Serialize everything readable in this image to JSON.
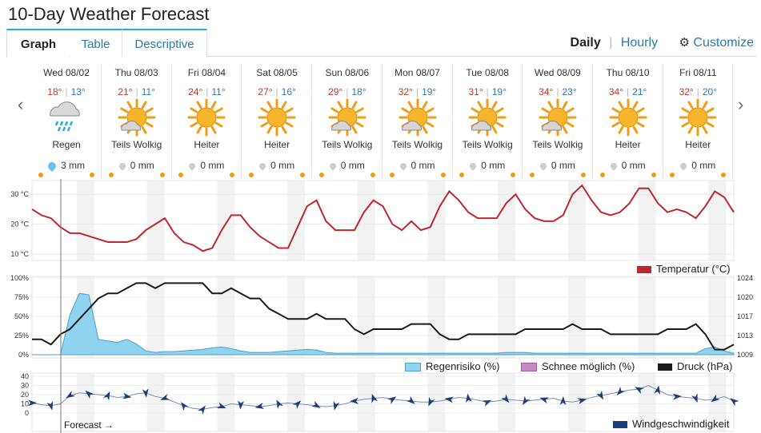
{
  "page_title": "10-Day Weather Forecast",
  "tabs": [
    {
      "label": "Graph",
      "active": true
    },
    {
      "label": "Table",
      "active": false
    },
    {
      "label": "Descriptive",
      "active": false
    }
  ],
  "view_links": {
    "daily": "Daily",
    "separator": "|",
    "hourly": "Hourly",
    "customize": "Customize"
  },
  "days": [
    {
      "date": "Wed 08/02",
      "hi": "18°",
      "lo": "13°",
      "cond": "Regen",
      "icon": "rain-cloud-icon",
      "precip": "3 mm"
    },
    {
      "date": "Thu 08/03",
      "hi": "21°",
      "lo": "11°",
      "cond": "Teils Wolkig",
      "icon": "sun-cloud-icon",
      "precip": "0 mm"
    },
    {
      "date": "Fri 08/04",
      "hi": "24°",
      "lo": "11°",
      "cond": "Heiter",
      "icon": "sun-icon",
      "precip": "0 mm"
    },
    {
      "date": "Sat 08/05",
      "hi": "27°",
      "lo": "16°",
      "cond": "Heiter",
      "icon": "sun-icon",
      "precip": "0 mm"
    },
    {
      "date": "Sun 08/06",
      "hi": "29°",
      "lo": "18°",
      "cond": "Teils Wolkig",
      "icon": "sun-cloud-icon",
      "precip": "0 mm"
    },
    {
      "date": "Mon 08/07",
      "hi": "32°",
      "lo": "19°",
      "cond": "Teils Wolkig",
      "icon": "sun-cloud-icon",
      "precip": "0 mm"
    },
    {
      "date": "Tue 08/08",
      "hi": "31°",
      "lo": "19°",
      "cond": "Teils Wolkig",
      "icon": "sun-cloud-icon",
      "precip": "0 mm"
    },
    {
      "date": "Wed 08/09",
      "hi": "34°",
      "lo": "23°",
      "cond": "Teils Wolkig",
      "icon": "sun-cloud-icon",
      "precip": "0 mm"
    },
    {
      "date": "Thu 08/10",
      "hi": "34°",
      "lo": "21°",
      "cond": "Heiter",
      "icon": "sun-icon",
      "precip": "0 mm"
    },
    {
      "date": "Fri 08/11",
      "hi": "32°",
      "lo": "20°",
      "cond": "Heiter",
      "icon": "sun-icon",
      "precip": "0 mm"
    }
  ],
  "forecast_label": "Forecast →",
  "legends": {
    "temperature": "Temperatur (°C)",
    "rain": "Regenrisiko (%)",
    "snow": "Schnee möglich (%)",
    "pressure": "Druck (hPa)",
    "wind": "Windgeschwindigkeit"
  },
  "colors": {
    "temperature": "#c0272d",
    "rain": "#8fd3ef",
    "snow": "#c58ac6",
    "pressure": "#1a1a1a",
    "wind": "#1b3d7a",
    "accent": "#2aa9e0"
  },
  "chart_data": [
    {
      "type": "line",
      "name": "temperature",
      "y_ticks": [
        "30 °C",
        "20 °C",
        "10 °C"
      ],
      "ylim": [
        10,
        33
      ],
      "legend": "Temperatur (°C)",
      "values": [
        25,
        23,
        22,
        19,
        17,
        17,
        16,
        15,
        14,
        14,
        14,
        15,
        18,
        20,
        22,
        17,
        14,
        13,
        11,
        12,
        18,
        23,
        23,
        19,
        16,
        14,
        12,
        12,
        19,
        26,
        28,
        21,
        18,
        18,
        18,
        24,
        28,
        26,
        20,
        18,
        21,
        18,
        19,
        26,
        31,
        28,
        24,
        22,
        22,
        22,
        27,
        30,
        25,
        22,
        21,
        21,
        23,
        30,
        33,
        28,
        24,
        23,
        24,
        27,
        32,
        32,
        27,
        24,
        25,
        24,
        22,
        26,
        31,
        29,
        24
      ]
    },
    {
      "type": "area+line",
      "name": "rain-pressure",
      "y_ticks_left": [
        "100%",
        "75%",
        "50%",
        "25%",
        "0%"
      ],
      "y_ticks_right": [
        "1024",
        "1020",
        "1017",
        "1013",
        "1009"
      ],
      "legend": [
        "Regenrisiko (%)",
        "Schnee möglich (%)",
        "Druck (hPa)"
      ],
      "rain_values": [
        0,
        0,
        0,
        0,
        52,
        80,
        78,
        20,
        18,
        16,
        20,
        14,
        5,
        3,
        4,
        4,
        5,
        6,
        7,
        9,
        10,
        8,
        5,
        3,
        3,
        3,
        4,
        5,
        6,
        7,
        6,
        3,
        2,
        2,
        2,
        2,
        2,
        2,
        2,
        2,
        2,
        2,
        2,
        2,
        2,
        2,
        2,
        2,
        2,
        2,
        3,
        3,
        3,
        2,
        2,
        2,
        2,
        2,
        2,
        2,
        2,
        2,
        2,
        2,
        2,
        2,
        2,
        2,
        2,
        2,
        2,
        8,
        10,
        5,
        2
      ],
      "pressure_values": [
        1012,
        1012,
        1011,
        1013,
        1014,
        1016,
        1018,
        1020,
        1021,
        1021,
        1022,
        1023,
        1023,
        1022,
        1023,
        1023,
        1023,
        1023,
        1023,
        1021,
        1021,
        1022,
        1021,
        1020,
        1020,
        1018,
        1017,
        1016,
        1016,
        1016,
        1017,
        1016,
        1016,
        1016,
        1014,
        1013,
        1014,
        1014,
        1014,
        1014,
        1015,
        1015,
        1015,
        1013,
        1012,
        1012,
        1013,
        1013,
        1013,
        1013,
        1013,
        1013,
        1014,
        1014,
        1014,
        1014,
        1014,
        1015,
        1014,
        1014,
        1014,
        1013,
        1013,
        1013,
        1013,
        1013,
        1013,
        1014,
        1014,
        1014,
        1015,
        1013,
        1010,
        1010,
        1011
      ]
    },
    {
      "type": "line",
      "name": "wind",
      "y_ticks": [
        "40",
        "30",
        "20",
        "10",
        "0"
      ],
      "ylim": [
        0,
        40
      ],
      "legend": "Windgeschwindigkeit",
      "values": [
        11,
        9,
        8,
        10,
        19,
        22,
        21,
        20,
        19,
        17,
        18,
        21,
        22,
        18,
        16,
        12,
        8,
        5,
        4,
        6,
        7,
        10,
        9,
        8,
        7,
        8,
        10,
        11,
        10,
        9,
        8,
        7,
        8,
        10,
        13,
        15,
        16,
        17,
        15,
        14,
        13,
        12,
        12,
        13,
        15,
        17,
        16,
        14,
        12,
        13,
        15,
        14,
        13,
        14,
        15,
        16,
        13,
        12,
        14,
        17,
        19,
        21,
        23,
        25,
        26,
        30,
        25,
        20,
        18,
        17,
        16,
        14,
        15,
        18,
        13
      ]
    }
  ]
}
